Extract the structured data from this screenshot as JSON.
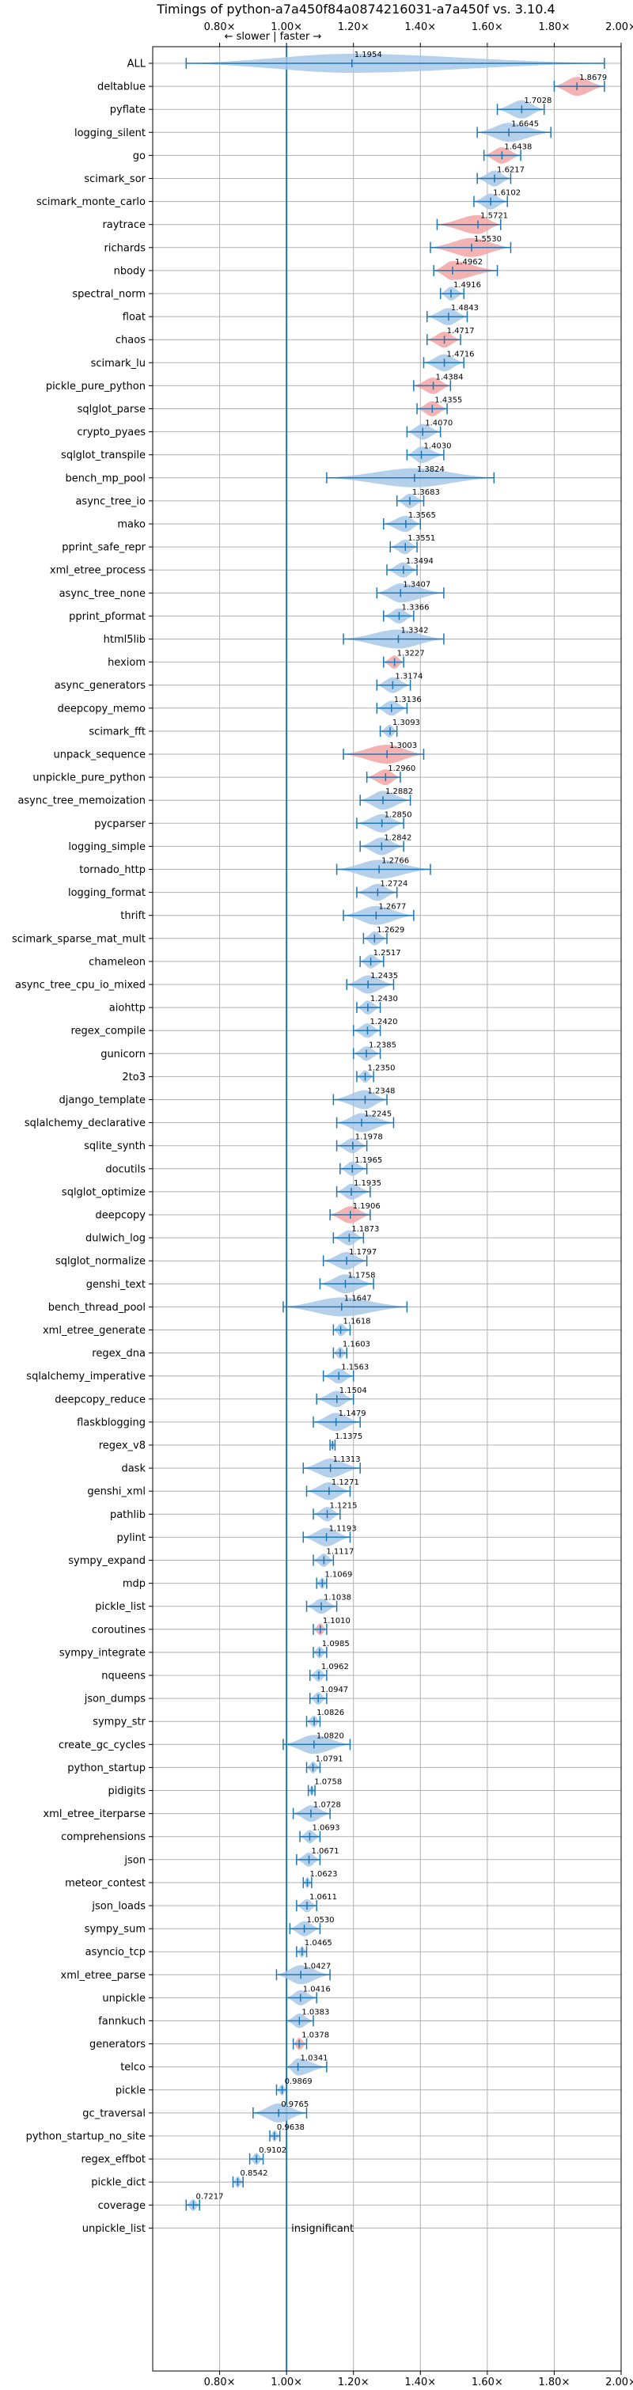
{
  "chart_data": {
    "type": "violin",
    "title": "Timings of python-a7a450f84a0874216031-a7a450f vs. 3.10.4",
    "direction_note": "← slower | faster →",
    "xlim": [
      0.6,
      2.0
    ],
    "xticks": [
      0.8,
      1.0,
      1.2,
      1.4,
      1.6,
      1.8,
      2.0
    ],
    "xtick_labels": [
      "0.80×",
      "1.00×",
      "1.20×",
      "1.40×",
      "1.60×",
      "1.80×",
      "2.00×"
    ],
    "reference_line": 1.0,
    "grid": true,
    "colors": {
      "faster": "#a8c8e8",
      "slower": "#f2a5a5",
      "line": "#1f77b4"
    },
    "benchmarks": [
      {
        "name": "ALL",
        "median": 1.1954,
        "label": "1.1954",
        "lo": 0.7,
        "hi": 1.95,
        "color": "blue"
      },
      {
        "name": "deltablue",
        "median": 1.8679,
        "label": "1.8679",
        "lo": 1.8,
        "hi": 1.95,
        "color": "red"
      },
      {
        "name": "pyflate",
        "median": 1.7028,
        "label": "1.7028",
        "lo": 1.63,
        "hi": 1.77,
        "color": "blue"
      },
      {
        "name": "logging_silent",
        "median": 1.6645,
        "label": "1.6645",
        "lo": 1.57,
        "hi": 1.79,
        "color": "blue"
      },
      {
        "name": "go",
        "median": 1.6438,
        "label": "1.6438",
        "lo": 1.59,
        "hi": 1.7,
        "color": "red"
      },
      {
        "name": "scimark_sor",
        "median": 1.6217,
        "label": "1.6217",
        "lo": 1.57,
        "hi": 1.67,
        "color": "blue"
      },
      {
        "name": "scimark_monte_carlo",
        "median": 1.6102,
        "label": "1.6102",
        "lo": 1.56,
        "hi": 1.66,
        "color": "blue"
      },
      {
        "name": "raytrace",
        "median": 1.5721,
        "label": "1.5721",
        "lo": 1.45,
        "hi": 1.64,
        "color": "red"
      },
      {
        "name": "richards",
        "median": 1.553,
        "label": "1.5530",
        "lo": 1.43,
        "hi": 1.67,
        "color": "red"
      },
      {
        "name": "nbody",
        "median": 1.4962,
        "label": "1.4962",
        "lo": 1.44,
        "hi": 1.63,
        "color": "red"
      },
      {
        "name": "spectral_norm",
        "median": 1.4916,
        "label": "1.4916",
        "lo": 1.46,
        "hi": 1.53,
        "color": "blue"
      },
      {
        "name": "float",
        "median": 1.4843,
        "label": "1.4843",
        "lo": 1.42,
        "hi": 1.54,
        "color": "blue"
      },
      {
        "name": "chaos",
        "median": 1.4717,
        "label": "1.4717",
        "lo": 1.42,
        "hi": 1.52,
        "color": "red"
      },
      {
        "name": "scimark_lu",
        "median": 1.4716,
        "label": "1.4716",
        "lo": 1.41,
        "hi": 1.53,
        "color": "blue"
      },
      {
        "name": "pickle_pure_python",
        "median": 1.4384,
        "label": "1.4384",
        "lo": 1.38,
        "hi": 1.49,
        "color": "red"
      },
      {
        "name": "sqlglot_parse",
        "median": 1.4355,
        "label": "1.4355",
        "lo": 1.39,
        "hi": 1.48,
        "color": "red"
      },
      {
        "name": "crypto_pyaes",
        "median": 1.407,
        "label": "1.4070",
        "lo": 1.36,
        "hi": 1.46,
        "color": "blue"
      },
      {
        "name": "sqlglot_transpile",
        "median": 1.403,
        "label": "1.4030",
        "lo": 1.36,
        "hi": 1.47,
        "color": "blue"
      },
      {
        "name": "bench_mp_pool",
        "median": 1.3824,
        "label": "1.3824",
        "lo": 1.12,
        "hi": 1.62,
        "color": "blue"
      },
      {
        "name": "async_tree_io",
        "median": 1.3683,
        "label": "1.3683",
        "lo": 1.33,
        "hi": 1.41,
        "color": "blue"
      },
      {
        "name": "mako",
        "median": 1.3565,
        "label": "1.3565",
        "lo": 1.29,
        "hi": 1.4,
        "color": "blue"
      },
      {
        "name": "pprint_safe_repr",
        "median": 1.3551,
        "label": "1.3551",
        "lo": 1.31,
        "hi": 1.39,
        "color": "blue"
      },
      {
        "name": "xml_etree_process",
        "median": 1.3494,
        "label": "1.3494",
        "lo": 1.3,
        "hi": 1.39,
        "color": "blue"
      },
      {
        "name": "async_tree_none",
        "median": 1.3407,
        "label": "1.3407",
        "lo": 1.27,
        "hi": 1.47,
        "color": "blue"
      },
      {
        "name": "pprint_pformat",
        "median": 1.3366,
        "label": "1.3366",
        "lo": 1.29,
        "hi": 1.38,
        "color": "blue"
      },
      {
        "name": "html5lib",
        "median": 1.3342,
        "label": "1.3342",
        "lo": 1.17,
        "hi": 1.47,
        "color": "blue"
      },
      {
        "name": "hexiom",
        "median": 1.3227,
        "label": "1.3227",
        "lo": 1.29,
        "hi": 1.35,
        "color": "red"
      },
      {
        "name": "async_generators",
        "median": 1.3174,
        "label": "1.3174",
        "lo": 1.27,
        "hi": 1.37,
        "color": "blue"
      },
      {
        "name": "deepcopy_memo",
        "median": 1.3136,
        "label": "1.3136",
        "lo": 1.27,
        "hi": 1.36,
        "color": "blue"
      },
      {
        "name": "scimark_fft",
        "median": 1.3093,
        "label": "1.3093",
        "lo": 1.28,
        "hi": 1.33,
        "color": "blue"
      },
      {
        "name": "unpack_sequence",
        "median": 1.3003,
        "label": "1.3003",
        "lo": 1.17,
        "hi": 1.41,
        "color": "red"
      },
      {
        "name": "unpickle_pure_python",
        "median": 1.296,
        "label": "1.2960",
        "lo": 1.24,
        "hi": 1.34,
        "color": "red"
      },
      {
        "name": "async_tree_memoization",
        "median": 1.2882,
        "label": "1.2882",
        "lo": 1.22,
        "hi": 1.37,
        "color": "blue"
      },
      {
        "name": "pycparser",
        "median": 1.285,
        "label": "1.2850",
        "lo": 1.21,
        "hi": 1.35,
        "color": "blue"
      },
      {
        "name": "logging_simple",
        "median": 1.2842,
        "label": "1.2842",
        "lo": 1.22,
        "hi": 1.35,
        "color": "blue"
      },
      {
        "name": "tornado_http",
        "median": 1.2766,
        "label": "1.2766",
        "lo": 1.15,
        "hi": 1.43,
        "color": "blue"
      },
      {
        "name": "logging_format",
        "median": 1.2724,
        "label": "1.2724",
        "lo": 1.21,
        "hi": 1.33,
        "color": "blue"
      },
      {
        "name": "thrift",
        "median": 1.2677,
        "label": "1.2677",
        "lo": 1.17,
        "hi": 1.38,
        "color": "blue"
      },
      {
        "name": "scimark_sparse_mat_mult",
        "median": 1.2629,
        "label": "1.2629",
        "lo": 1.23,
        "hi": 1.3,
        "color": "blue"
      },
      {
        "name": "chameleon",
        "median": 1.2517,
        "label": "1.2517",
        "lo": 1.22,
        "hi": 1.29,
        "color": "blue"
      },
      {
        "name": "async_tree_cpu_io_mixed",
        "median": 1.2435,
        "label": "1.2435",
        "lo": 1.18,
        "hi": 1.32,
        "color": "blue"
      },
      {
        "name": "aiohttp",
        "median": 1.243,
        "label": "1.2430",
        "lo": 1.21,
        "hi": 1.28,
        "color": "blue"
      },
      {
        "name": "regex_compile",
        "median": 1.242,
        "label": "1.2420",
        "lo": 1.2,
        "hi": 1.28,
        "color": "blue"
      },
      {
        "name": "gunicorn",
        "median": 1.2385,
        "label": "1.2385",
        "lo": 1.2,
        "hi": 1.28,
        "color": "blue"
      },
      {
        "name": "2to3",
        "median": 1.235,
        "label": "1.2350",
        "lo": 1.21,
        "hi": 1.26,
        "color": "blue"
      },
      {
        "name": "django_template",
        "median": 1.2348,
        "label": "1.2348",
        "lo": 1.14,
        "hi": 1.3,
        "color": "blue"
      },
      {
        "name": "sqlalchemy_declarative",
        "median": 1.2245,
        "label": "1.2245",
        "lo": 1.15,
        "hi": 1.32,
        "color": "blue"
      },
      {
        "name": "sqlite_synth",
        "median": 1.1978,
        "label": "1.1978",
        "lo": 1.15,
        "hi": 1.24,
        "color": "blue"
      },
      {
        "name": "docutils",
        "median": 1.1965,
        "label": "1.1965",
        "lo": 1.16,
        "hi": 1.24,
        "color": "blue"
      },
      {
        "name": "sqlglot_optimize",
        "median": 1.1935,
        "label": "1.1935",
        "lo": 1.15,
        "hi": 1.25,
        "color": "blue"
      },
      {
        "name": "deepcopy",
        "median": 1.1906,
        "label": "1.1906",
        "lo": 1.13,
        "hi": 1.25,
        "color": "red"
      },
      {
        "name": "dulwich_log",
        "median": 1.1873,
        "label": "1.1873",
        "lo": 1.14,
        "hi": 1.23,
        "color": "blue"
      },
      {
        "name": "sqlglot_normalize",
        "median": 1.1797,
        "label": "1.1797",
        "lo": 1.11,
        "hi": 1.24,
        "color": "blue"
      },
      {
        "name": "genshi_text",
        "median": 1.1758,
        "label": "1.1758",
        "lo": 1.1,
        "hi": 1.26,
        "color": "blue"
      },
      {
        "name": "bench_thread_pool",
        "median": 1.1647,
        "label": "1.1647",
        "lo": 0.99,
        "hi": 1.36,
        "color": "blue"
      },
      {
        "name": "xml_etree_generate",
        "median": 1.1618,
        "label": "1.1618",
        "lo": 1.14,
        "hi": 1.19,
        "color": "blue"
      },
      {
        "name": "regex_dna",
        "median": 1.1603,
        "label": "1.1603",
        "lo": 1.14,
        "hi": 1.18,
        "color": "blue"
      },
      {
        "name": "sqlalchemy_imperative",
        "median": 1.1563,
        "label": "1.1563",
        "lo": 1.11,
        "hi": 1.2,
        "color": "blue"
      },
      {
        "name": "deepcopy_reduce",
        "median": 1.1504,
        "label": "1.1504",
        "lo": 1.09,
        "hi": 1.2,
        "color": "blue"
      },
      {
        "name": "flaskblogging",
        "median": 1.1479,
        "label": "1.1479",
        "lo": 1.08,
        "hi": 1.22,
        "color": "blue"
      },
      {
        "name": "regex_v8",
        "median": 1.1375,
        "label": "1.1375",
        "lo": 1.13,
        "hi": 1.145,
        "color": "blue"
      },
      {
        "name": "dask",
        "median": 1.1313,
        "label": "1.1313",
        "lo": 1.05,
        "hi": 1.22,
        "color": "blue"
      },
      {
        "name": "genshi_xml",
        "median": 1.1271,
        "label": "1.1271",
        "lo": 1.06,
        "hi": 1.19,
        "color": "blue"
      },
      {
        "name": "pathlib",
        "median": 1.1215,
        "label": "1.1215",
        "lo": 1.08,
        "hi": 1.16,
        "color": "blue"
      },
      {
        "name": "pylint",
        "median": 1.1193,
        "label": "1.1193",
        "lo": 1.05,
        "hi": 1.19,
        "color": "blue"
      },
      {
        "name": "sympy_expand",
        "median": 1.1117,
        "label": "1.1117",
        "lo": 1.08,
        "hi": 1.14,
        "color": "blue"
      },
      {
        "name": "mdp",
        "median": 1.1069,
        "label": "1.1069",
        "lo": 1.09,
        "hi": 1.12,
        "color": "blue"
      },
      {
        "name": "pickle_list",
        "median": 1.1038,
        "label": "1.1038",
        "lo": 1.06,
        "hi": 1.15,
        "color": "blue"
      },
      {
        "name": "coroutines",
        "median": 1.101,
        "label": "1.1010",
        "lo": 1.08,
        "hi": 1.12,
        "color": "red"
      },
      {
        "name": "sympy_integrate",
        "median": 1.0985,
        "label": "1.0985",
        "lo": 1.08,
        "hi": 1.12,
        "color": "blue"
      },
      {
        "name": "nqueens",
        "median": 1.0962,
        "label": "1.0962",
        "lo": 1.07,
        "hi": 1.12,
        "color": "blue"
      },
      {
        "name": "json_dumps",
        "median": 1.0947,
        "label": "1.0947",
        "lo": 1.07,
        "hi": 1.12,
        "color": "blue"
      },
      {
        "name": "sympy_str",
        "median": 1.0826,
        "label": "1.0826",
        "lo": 1.06,
        "hi": 1.1,
        "color": "blue"
      },
      {
        "name": "create_gc_cycles",
        "median": 1.082,
        "label": "1.0820",
        "lo": 0.99,
        "hi": 1.19,
        "color": "blue"
      },
      {
        "name": "python_startup",
        "median": 1.0791,
        "label": "1.0791",
        "lo": 1.06,
        "hi": 1.1,
        "color": "blue"
      },
      {
        "name": "pidigits",
        "median": 1.0758,
        "label": "1.0758",
        "lo": 1.065,
        "hi": 1.085,
        "color": "blue"
      },
      {
        "name": "xml_etree_iterparse",
        "median": 1.0728,
        "label": "1.0728",
        "lo": 1.02,
        "hi": 1.13,
        "color": "blue"
      },
      {
        "name": "comprehensions",
        "median": 1.0693,
        "label": "1.0693",
        "lo": 1.04,
        "hi": 1.1,
        "color": "blue"
      },
      {
        "name": "json",
        "median": 1.0671,
        "label": "1.0671",
        "lo": 1.03,
        "hi": 1.1,
        "color": "blue"
      },
      {
        "name": "meteor_contest",
        "median": 1.0623,
        "label": "1.0623",
        "lo": 1.05,
        "hi": 1.075,
        "color": "blue"
      },
      {
        "name": "json_loads",
        "median": 1.0611,
        "label": "1.0611",
        "lo": 1.03,
        "hi": 1.09,
        "color": "blue"
      },
      {
        "name": "sympy_sum",
        "median": 1.053,
        "label": "1.0530",
        "lo": 1.01,
        "hi": 1.1,
        "color": "blue"
      },
      {
        "name": "asyncio_tcp",
        "median": 1.0465,
        "label": "1.0465",
        "lo": 1.03,
        "hi": 1.06,
        "color": "blue"
      },
      {
        "name": "xml_etree_parse",
        "median": 1.0427,
        "label": "1.0427",
        "lo": 0.97,
        "hi": 1.13,
        "color": "blue"
      },
      {
        "name": "unpickle",
        "median": 1.0416,
        "label": "1.0416",
        "lo": 1.0,
        "hi": 1.09,
        "color": "blue"
      },
      {
        "name": "fannkuch",
        "median": 1.0383,
        "label": "1.0383",
        "lo": 1.0,
        "hi": 1.08,
        "color": "blue"
      },
      {
        "name": "generators",
        "median": 1.0378,
        "label": "1.0378",
        "lo": 1.02,
        "hi": 1.06,
        "color": "red"
      },
      {
        "name": "telco",
        "median": 1.0341,
        "label": "1.0341",
        "lo": 1.0,
        "hi": 1.12,
        "color": "blue"
      },
      {
        "name": "pickle",
        "median": 0.9869,
        "label": "0.9869",
        "lo": 0.97,
        "hi": 1.0,
        "color": "blue"
      },
      {
        "name": "gc_traversal",
        "median": 0.9765,
        "label": "0.9765",
        "lo": 0.9,
        "hi": 1.06,
        "color": "blue"
      },
      {
        "name": "python_startup_no_site",
        "median": 0.9638,
        "label": "0.9638",
        "lo": 0.95,
        "hi": 0.98,
        "color": "blue"
      },
      {
        "name": "regex_effbot",
        "median": 0.9102,
        "label": "0.9102",
        "lo": 0.89,
        "hi": 0.93,
        "color": "blue"
      },
      {
        "name": "pickle_dict",
        "median": 0.8542,
        "label": "0.8542",
        "lo": 0.84,
        "hi": 0.87,
        "color": "blue"
      },
      {
        "name": "coverage",
        "median": 0.7217,
        "label": "0.7217",
        "lo": 0.7,
        "hi": 0.74,
        "color": "blue"
      },
      {
        "name": "unpickle_list",
        "median": null,
        "label": "insignificant",
        "lo": null,
        "hi": null,
        "color": "none"
      }
    ]
  }
}
